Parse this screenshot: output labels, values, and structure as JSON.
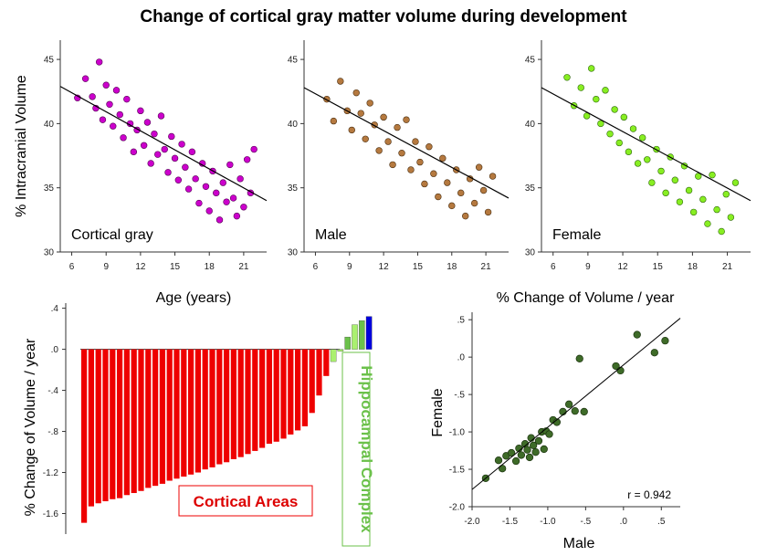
{
  "title": "Change of cortical gray matter volume during development",
  "colors": {
    "magenta": "#cc00cc",
    "magenta_edge": "#550055",
    "tan": "#b5793f",
    "tan_edge": "#4a2e10",
    "lime": "#88ee22",
    "lime_edge": "#2f6a0a",
    "red": "#ee0000",
    "cortical_label": "#dd0000",
    "hipp_green": "#6bc14a",
    "hipp_lime": "#aaf070",
    "blue": "#0000dd",
    "dark_green": "#3e6b28",
    "dark_green_edge": "#1c3310"
  },
  "top_row_ylabel": "% Intracranial Volume",
  "top_row_xlabel": "Age (years)",
  "chart_data": [
    {
      "type": "scatter",
      "panel_label": "Cortical gray",
      "color": "magenta",
      "xlim": [
        5,
        23
      ],
      "ylim": [
        30,
        46.5
      ],
      "xticks": [
        "6",
        "9",
        "12",
        "15",
        "18",
        "21"
      ],
      "yticks": [
        "30",
        "35",
        "40",
        "45"
      ],
      "fit": {
        "x": [
          5,
          23
        ],
        "y": [
          42.9,
          34.0
        ]
      },
      "points": [
        [
          6.5,
          42.0
        ],
        [
          7.2,
          43.5
        ],
        [
          7.8,
          42.1
        ],
        [
          8.1,
          41.2
        ],
        [
          8.4,
          44.8
        ],
        [
          8.7,
          40.3
        ],
        [
          9.0,
          43.0
        ],
        [
          9.3,
          41.5
        ],
        [
          9.6,
          39.8
        ],
        [
          9.9,
          42.6
        ],
        [
          10.2,
          40.7
        ],
        [
          10.5,
          38.9
        ],
        [
          10.8,
          41.9
        ],
        [
          11.1,
          40.0
        ],
        [
          11.4,
          37.8
        ],
        [
          11.7,
          39.5
        ],
        [
          12.0,
          41.0
        ],
        [
          12.3,
          38.3
        ],
        [
          12.6,
          40.1
        ],
        [
          12.9,
          36.9
        ],
        [
          13.2,
          39.2
        ],
        [
          13.5,
          37.6
        ],
        [
          13.8,
          40.6
        ],
        [
          14.1,
          38.0
        ],
        [
          14.4,
          36.2
        ],
        [
          14.7,
          39.0
        ],
        [
          15.0,
          37.3
        ],
        [
          15.3,
          35.6
        ],
        [
          15.6,
          38.4
        ],
        [
          15.9,
          36.6
        ],
        [
          16.2,
          34.9
        ],
        [
          16.5,
          37.8
        ],
        [
          16.8,
          35.7
        ],
        [
          17.1,
          33.8
        ],
        [
          17.4,
          36.9
        ],
        [
          17.7,
          35.1
        ],
        [
          18.0,
          33.2
        ],
        [
          18.3,
          36.3
        ],
        [
          18.6,
          34.6
        ],
        [
          18.9,
          32.5
        ],
        [
          19.2,
          35.4
        ],
        [
          19.5,
          33.9
        ],
        [
          19.8,
          36.8
        ],
        [
          20.1,
          34.2
        ],
        [
          20.4,
          32.8
        ],
        [
          20.7,
          35.7
        ],
        [
          21.0,
          33.5
        ],
        [
          21.3,
          37.2
        ],
        [
          21.6,
          34.6
        ],
        [
          21.9,
          38.0
        ]
      ]
    },
    {
      "type": "scatter",
      "panel_label": "Male",
      "color": "tan",
      "xlim": [
        5,
        23
      ],
      "ylim": [
        30,
        46.5
      ],
      "xticks": [
        "6",
        "9",
        "12",
        "15",
        "18",
        "21"
      ],
      "yticks": [
        "30",
        "35",
        "40",
        "45"
      ],
      "fit": {
        "x": [
          5,
          23
        ],
        "y": [
          42.8,
          34.2
        ]
      },
      "points": [
        [
          7.0,
          41.9
        ],
        [
          7.6,
          40.2
        ],
        [
          8.2,
          43.3
        ],
        [
          8.8,
          41.0
        ],
        [
          9.2,
          39.5
        ],
        [
          9.6,
          42.4
        ],
        [
          10.0,
          40.8
        ],
        [
          10.4,
          38.8
        ],
        [
          10.8,
          41.6
        ],
        [
          11.2,
          39.9
        ],
        [
          11.6,
          37.9
        ],
        [
          12.0,
          40.5
        ],
        [
          12.4,
          38.6
        ],
        [
          12.8,
          36.8
        ],
        [
          13.2,
          39.7
        ],
        [
          13.6,
          37.7
        ],
        [
          14.0,
          40.3
        ],
        [
          14.4,
          36.4
        ],
        [
          14.8,
          38.6
        ],
        [
          15.2,
          37.0
        ],
        [
          15.6,
          35.3
        ],
        [
          16.0,
          38.2
        ],
        [
          16.4,
          36.1
        ],
        [
          16.8,
          34.3
        ],
        [
          17.2,
          37.3
        ],
        [
          17.6,
          35.4
        ],
        [
          18.0,
          33.6
        ],
        [
          18.4,
          36.4
        ],
        [
          18.8,
          34.6
        ],
        [
          19.2,
          32.8
        ],
        [
          19.6,
          35.7
        ],
        [
          20.0,
          33.8
        ],
        [
          20.4,
          36.6
        ],
        [
          20.8,
          34.8
        ],
        [
          21.2,
          33.1
        ],
        [
          21.6,
          35.9
        ]
      ]
    },
    {
      "type": "scatter",
      "panel_label": "Female",
      "color": "lime",
      "xlim": [
        5,
        23
      ],
      "ylim": [
        30,
        46.5
      ],
      "xticks": [
        "6",
        "9",
        "12",
        "15",
        "18",
        "21"
      ],
      "yticks": [
        "30",
        "35",
        "40",
        "45"
      ],
      "fit": {
        "x": [
          5,
          23
        ],
        "y": [
          42.8,
          34.0
        ]
      },
      "points": [
        [
          7.2,
          43.6
        ],
        [
          7.8,
          41.4
        ],
        [
          8.4,
          42.8
        ],
        [
          8.9,
          40.6
        ],
        [
          9.3,
          44.3
        ],
        [
          9.7,
          41.9
        ],
        [
          10.1,
          40.0
        ],
        [
          10.5,
          42.6
        ],
        [
          10.9,
          39.2
        ],
        [
          11.3,
          41.1
        ],
        [
          11.7,
          38.5
        ],
        [
          12.1,
          40.5
        ],
        [
          12.5,
          37.8
        ],
        [
          12.9,
          39.6
        ],
        [
          13.3,
          36.9
        ],
        [
          13.7,
          38.9
        ],
        [
          14.1,
          37.2
        ],
        [
          14.5,
          35.4
        ],
        [
          14.9,
          38.0
        ],
        [
          15.3,
          36.3
        ],
        [
          15.7,
          34.6
        ],
        [
          16.1,
          37.4
        ],
        [
          16.5,
          35.6
        ],
        [
          16.9,
          33.9
        ],
        [
          17.3,
          36.7
        ],
        [
          17.7,
          34.8
        ],
        [
          18.1,
          33.1
        ],
        [
          18.5,
          35.9
        ],
        [
          18.9,
          34.1
        ],
        [
          19.3,
          32.2
        ],
        [
          19.7,
          36.0
        ],
        [
          20.1,
          33.3
        ],
        [
          20.5,
          31.6
        ],
        [
          20.9,
          34.5
        ],
        [
          21.3,
          32.7
        ],
        [
          21.7,
          35.4
        ]
      ]
    },
    {
      "type": "bar",
      "ylabel": "% Change of Volume / year",
      "ylim": [
        -1.8,
        0.45
      ],
      "yticks": [
        ".4",
        ".0",
        "-.4",
        "-.8",
        "-1.2",
        "-1.6"
      ],
      "cortical_values": [
        -1.69,
        -1.53,
        -1.5,
        -1.48,
        -1.46,
        -1.45,
        -1.42,
        -1.4,
        -1.38,
        -1.35,
        -1.33,
        -1.31,
        -1.28,
        -1.26,
        -1.24,
        -1.22,
        -1.2,
        -1.17,
        -1.15,
        -1.12,
        -1.1,
        -1.07,
        -1.05,
        -1.02,
        -0.99,
        -0.96,
        -0.92,
        -0.9,
        -0.87,
        -0.83,
        -0.79,
        -0.75,
        -0.62,
        -0.45,
        -0.26
      ],
      "hippocampal_values": [
        -0.12,
        -0.02,
        0.12,
        0.24,
        0.28,
        0.32
      ],
      "hippocampal_colors": [
        "hipp_lime",
        "hipp_lime",
        "hipp_green",
        "hipp_lime",
        "hipp_green",
        "blue"
      ],
      "cortical_label": "Cortical Areas",
      "hippocampal_label": "Hippocampal Complex"
    },
    {
      "type": "scatter",
      "title": "% Change of Volume / year",
      "xlabel": "Male",
      "ylabel": "Female",
      "xlim": [
        -2.0,
        0.75
      ],
      "ylim": [
        -2.0,
        0.6
      ],
      "xticks": [
        "-2.0",
        "-1.5",
        "-1.0",
        "-.5",
        ".0",
        ".5"
      ],
      "yticks": [
        ".5",
        ".0",
        "-.5",
        "-1.0",
        "-1.5",
        "-2.0"
      ],
      "fit": {
        "x": [
          -2.0,
          0.75
        ],
        "y": [
          -1.77,
          0.52
        ]
      },
      "r_label": "r = 0.942",
      "points": [
        [
          -1.82,
          -1.62
        ],
        [
          -1.65,
          -1.38
        ],
        [
          -1.6,
          -1.49
        ],
        [
          -1.55,
          -1.32
        ],
        [
          -1.48,
          -1.28
        ],
        [
          -1.42,
          -1.39
        ],
        [
          -1.38,
          -1.22
        ],
        [
          -1.35,
          -1.31
        ],
        [
          -1.3,
          -1.16
        ],
        [
          -1.27,
          -1.24
        ],
        [
          -1.24,
          -1.34
        ],
        [
          -1.22,
          -1.08
        ],
        [
          -1.19,
          -1.18
        ],
        [
          -1.16,
          -1.27
        ],
        [
          -1.12,
          -1.12
        ],
        [
          -1.08,
          -1.0
        ],
        [
          -1.05,
          -1.23
        ],
        [
          -1.02,
          -0.99
        ],
        [
          -0.98,
          -1.03
        ],
        [
          -0.93,
          -0.84
        ],
        [
          -0.88,
          -0.87
        ],
        [
          -0.8,
          -0.73
        ],
        [
          -0.72,
          -0.63
        ],
        [
          -0.64,
          -0.72
        ],
        [
          -0.58,
          -0.02
        ],
        [
          -0.52,
          -0.73
        ],
        [
          -0.1,
          -0.12
        ],
        [
          -0.04,
          -0.18
        ],
        [
          0.18,
          0.3
        ],
        [
          0.41,
          0.06
        ],
        [
          0.55,
          0.22
        ]
      ]
    }
  ]
}
